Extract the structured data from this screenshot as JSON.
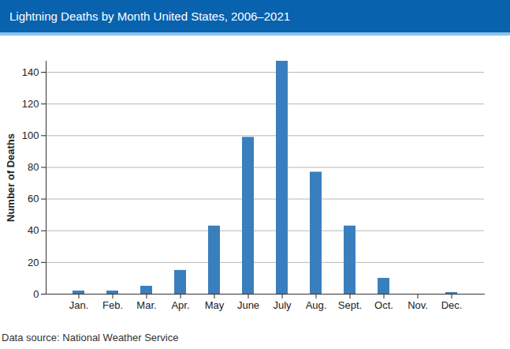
{
  "chart_data": {
    "type": "bar",
    "title": "Lightning Deaths by Month United States, 2006–2021",
    "y_label": "Number of Deaths",
    "caption": "Data source: National Weather Service",
    "categories": [
      "Jan.",
      "Feb.",
      "Mar.",
      "Apr.",
      "May",
      "June",
      "July",
      "Aug.",
      "Sept.",
      "Oct.",
      "Nov.",
      "Dec."
    ],
    "values": [
      2,
      2,
      5,
      15,
      43,
      99,
      147,
      77,
      43,
      10,
      0,
      1
    ],
    "color": "#3a7fbd",
    "ylim": [
      0,
      147
    ],
    "yticks": [
      0,
      20,
      40,
      60,
      80,
      100,
      120,
      140
    ],
    "grid": true
  }
}
